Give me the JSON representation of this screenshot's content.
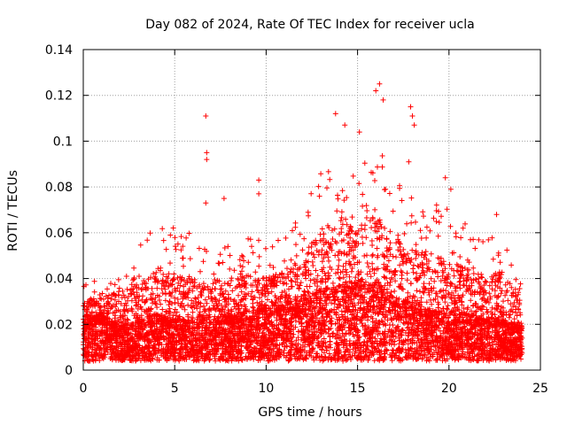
{
  "chart_data": {
    "type": "scatter",
    "title": "Day 082 of 2024, Rate Of TEC Index for receiver ucla",
    "xlabel": "GPS time / hours",
    "ylabel": "ROTI / TECUs",
    "xlim": [
      0,
      25
    ],
    "ylim": [
      0,
      0.14
    ],
    "grid": true,
    "marker": "+",
    "color": "#ff0000",
    "x_ticks": [
      0,
      5,
      10,
      15,
      20,
      25
    ],
    "x_tick_labels": [
      "0",
      "5",
      "10",
      "15",
      "20",
      "25"
    ],
    "y_ticks": [
      0,
      0.02,
      0.04,
      0.06,
      0.08,
      0.1,
      0.12,
      0.14
    ],
    "y_tick_labels": [
      "0",
      "0.02",
      "0.04",
      "0.06",
      "0.08",
      "0.1",
      "0.12",
      "0.14"
    ],
    "series": [
      {
        "name": "ROTI",
        "x_range": [
          0,
          24
        ],
        "envelope_hours": [
          0,
          1,
          2,
          3,
          4,
          5,
          6,
          7,
          8,
          9,
          10,
          11,
          12,
          13,
          14,
          15,
          16,
          17,
          18,
          19,
          20,
          21,
          22,
          23,
          24
        ],
        "envelope_base": [
          0.018,
          0.02,
          0.016,
          0.018,
          0.02,
          0.018,
          0.018,
          0.018,
          0.02,
          0.02,
          0.022,
          0.024,
          0.025,
          0.028,
          0.03,
          0.032,
          0.03,
          0.026,
          0.024,
          0.022,
          0.02,
          0.02,
          0.018,
          0.018,
          0.016
        ],
        "envelope_max": [
          0.04,
          0.042,
          0.05,
          0.055,
          0.065,
          0.062,
          0.06,
          0.05,
          0.055,
          0.06,
          0.055,
          0.06,
          0.07,
          0.09,
          0.095,
          0.085,
          0.1,
          0.085,
          0.075,
          0.075,
          0.07,
          0.065,
          0.06,
          0.065,
          0.045
        ],
        "outliers": [
          {
            "x": 6.7,
            "y": 0.111
          },
          {
            "x": 6.75,
            "y": 0.095
          },
          {
            "x": 6.75,
            "y": 0.092
          },
          {
            "x": 6.7,
            "y": 0.073
          },
          {
            "x": 7.7,
            "y": 0.075
          },
          {
            "x": 9.6,
            "y": 0.083
          },
          {
            "x": 9.6,
            "y": 0.077
          },
          {
            "x": 13.8,
            "y": 0.112
          },
          {
            "x": 14.3,
            "y": 0.107
          },
          {
            "x": 15.1,
            "y": 0.104
          },
          {
            "x": 16.2,
            "y": 0.125
          },
          {
            "x": 16.0,
            "y": 0.122
          },
          {
            "x": 16.4,
            "y": 0.118
          },
          {
            "x": 17.9,
            "y": 0.115
          },
          {
            "x": 18.0,
            "y": 0.111
          },
          {
            "x": 18.1,
            "y": 0.107
          },
          {
            "x": 17.8,
            "y": 0.091
          },
          {
            "x": 19.8,
            "y": 0.084
          },
          {
            "x": 20.1,
            "y": 0.079
          },
          {
            "x": 22.6,
            "y": 0.068
          },
          {
            "x": 14.2,
            "y": 0.004
          }
        ]
      }
    ]
  }
}
